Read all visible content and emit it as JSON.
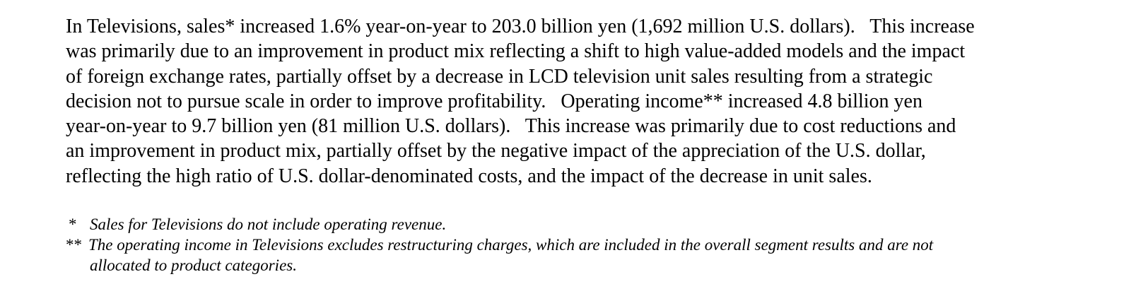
{
  "paragraph": {
    "lines": [
      "In Televisions, sales* increased 1.6% year-on-year to 203.0 billion yen (1,692 million U.S. dollars).   This increase",
      "was primarily due to an improvement in product mix reflecting a shift to high value-added models and the impact",
      "of foreign exchange rates, partially offset by a decrease in LCD television unit sales resulting from a strategic",
      "decision not to pursue scale in order to improve profitability.   Operating income** increased 4.8 billion yen",
      "year-on-year to 9.7 billion yen (81 million U.S. dollars).   This increase was primarily due to cost reductions and",
      "an improvement in product mix, partially offset by the negative impact of the appreciation of the U.S. dollar,",
      "reflecting the high ratio of U.S. dollar-denominated costs, and the impact of the decrease in unit sales."
    ]
  },
  "footnotes": [
    {
      "mark": "*",
      "text": "Sales for Televisions do not include operating revenue."
    },
    {
      "mark": "**",
      "text": "The operating income in Televisions excludes restructuring charges, which are included in the overall segment results and are not",
      "continuation": "allocated to product categories."
    }
  ]
}
